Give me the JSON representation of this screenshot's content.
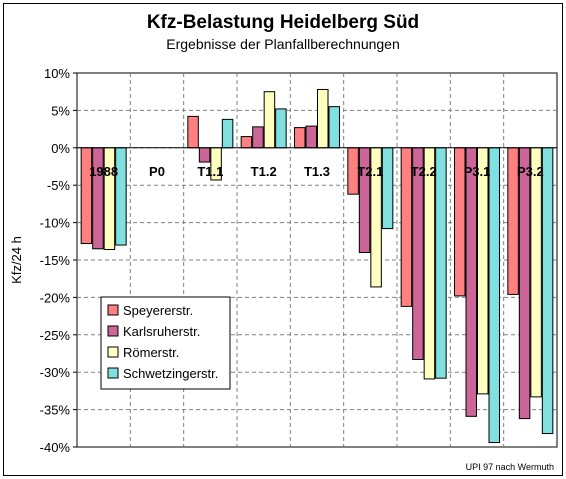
{
  "chart_data": {
    "type": "bar",
    "title": "Kfz-Belastung Heidelberg Süd",
    "subtitle": "Ergebnisse der Planfallberechnungen",
    "ylabel": "Kfz/24 h",
    "xlabel": "",
    "categories": [
      "1988",
      "P0",
      "T1.1",
      "T1.2",
      "T1.3",
      "T2.1",
      "T2.2",
      "P3.1",
      "P3.2"
    ],
    "ylim": [
      -40,
      10
    ],
    "ytick_values": [
      10,
      5,
      0,
      -5,
      -10,
      -15,
      -20,
      -25,
      -30,
      -35,
      -40
    ],
    "ytick_labels": [
      "10%",
      "5%",
      "0%",
      "-5%",
      "-10%",
      "-15%",
      "-20%",
      "-25%",
      "-30%",
      "-35%",
      "-40%"
    ],
    "grid": true,
    "legend_position": "inside lower-left",
    "series": [
      {
        "name": "Speyererstr.",
        "color": "#FF8080",
        "values": [
          -12.8,
          0,
          4.2,
          1.5,
          2.7,
          -6.2,
          -21.2,
          -19.8,
          -19.6
        ]
      },
      {
        "name": "Karlsruherstr.",
        "color": "#CC6699",
        "values": [
          -13.5,
          0,
          -1.9,
          2.8,
          2.9,
          -14.0,
          -28.3,
          -35.9,
          -36.2
        ]
      },
      {
        "name": "Römerstr.",
        "color": "#FFFFC0",
        "values": [
          -13.6,
          0,
          -4.3,
          7.5,
          7.8,
          -18.6,
          -30.9,
          -32.9,
          -33.3
        ]
      },
      {
        "name": "Schwetzingerstr.",
        "color": "#80E0E0",
        "values": [
          -13.0,
          0,
          3.8,
          5.2,
          5.5,
          -10.8,
          -30.8,
          -39.4,
          -38.2
        ]
      }
    ],
    "annotation": "UPI 97 nach Wermuth"
  }
}
